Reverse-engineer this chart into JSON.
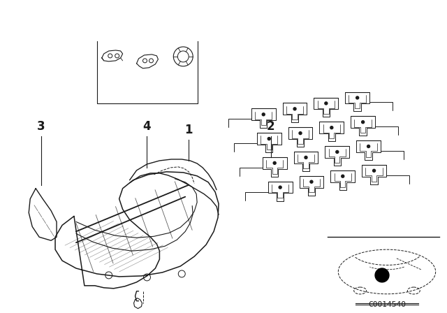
{
  "bg_color": "#ffffff",
  "catalog_number": "C0014540",
  "fig_width": 6.4,
  "fig_height": 4.48,
  "line_color": "#1a1a1a",
  "label_fontsize": 12,
  "cat_fontsize": 8
}
